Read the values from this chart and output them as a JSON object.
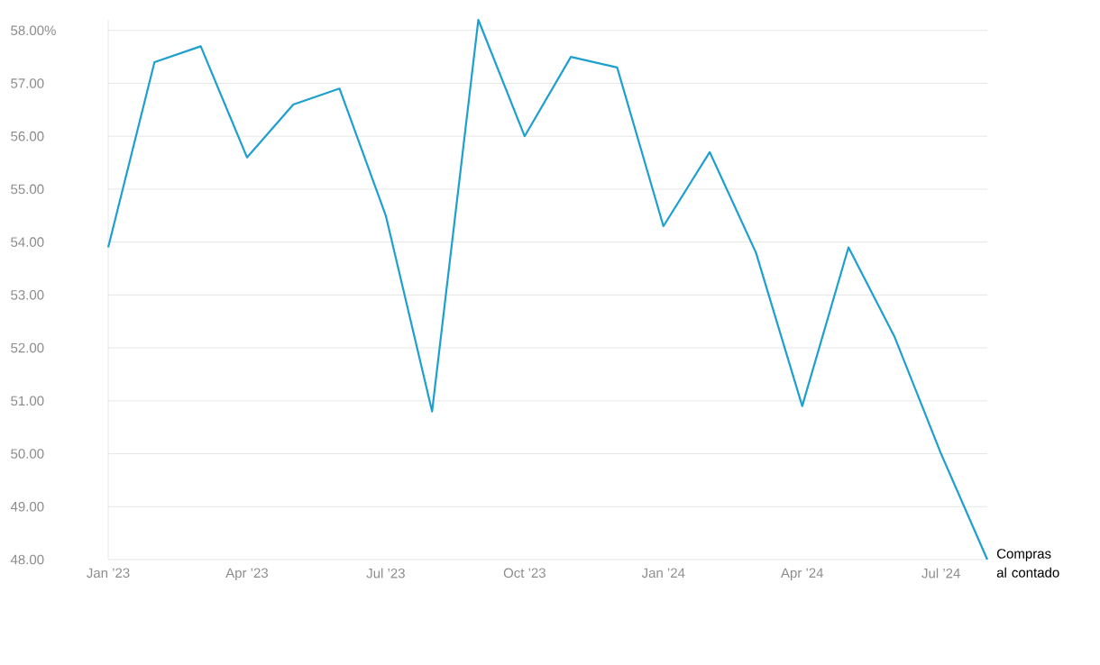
{
  "chart_data": {
    "type": "line",
    "x": [
      "2023-01",
      "2023-02",
      "2023-03",
      "2023-04",
      "2023-05",
      "2023-06",
      "2023-07",
      "2023-08",
      "2023-09",
      "2023-10",
      "2023-11",
      "2023-12",
      "2024-01",
      "2024-02",
      "2024-03",
      "2024-04",
      "2024-05",
      "2024-06",
      "2024-07",
      "2024-08"
    ],
    "series": [
      {
        "name": "Compras al contado",
        "color": "#1d9fd0",
        "values": [
          53.9,
          57.4,
          57.7,
          55.6,
          56.6,
          56.9,
          54.5,
          50.8,
          58.2,
          56.0,
          57.5,
          57.3,
          54.3,
          55.7,
          53.8,
          50.9,
          53.9,
          52.2,
          50.0,
          48.0
        ]
      }
    ],
    "xlim": [
      "2023-01",
      "2024-08"
    ],
    "ylim": [
      48,
      58.2
    ],
    "xticks": [
      {
        "value": "2023-01",
        "label": "Jan ’23"
      },
      {
        "value": "2023-04",
        "label": "Apr ’23"
      },
      {
        "value": "2023-07",
        "label": "Jul ’23"
      },
      {
        "value": "2023-10",
        "label": "Oct ’23"
      },
      {
        "value": "2024-01",
        "label": "Jan ’24"
      },
      {
        "value": "2024-04",
        "label": "Apr ’24"
      },
      {
        "value": "2024-07",
        "label": "Jul ’24"
      }
    ],
    "yticks": [
      {
        "value": 48,
        "label": "48.00"
      },
      {
        "value": 49,
        "label": "49.00"
      },
      {
        "value": 50,
        "label": "50.00"
      },
      {
        "value": 51,
        "label": "51.00"
      },
      {
        "value": 52,
        "label": "52.00"
      },
      {
        "value": 53,
        "label": "53.00"
      },
      {
        "value": 54,
        "label": "54.00"
      },
      {
        "value": 55,
        "label": "55.00"
      },
      {
        "value": 56,
        "label": "56.00"
      },
      {
        "value": 57,
        "label": "57.00"
      },
      {
        "value": 58,
        "label": "58.00%"
      }
    ],
    "grid": "y"
  }
}
